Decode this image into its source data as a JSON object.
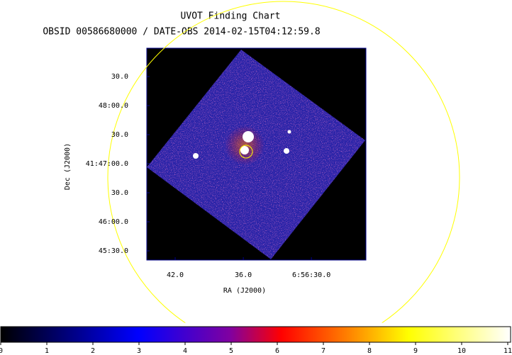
{
  "chart_data": {
    "type": "image",
    "title": "UVOT Finding Chart",
    "subtitle": "OBSID 00586680000 / DATE-OBS 2014-02-15T04:12:59.8",
    "xlabel": "RA (J2000)",
    "ylabel": "Dec (J2000)",
    "xlim": [
      44.5,
      25.2
    ],
    "xticks": [
      {
        "value": 42,
        "label": "42.0"
      },
      {
        "value": 36,
        "label": "36.0"
      },
      {
        "value": 30,
        "label": "6:56:30.0"
      }
    ],
    "ylim": [
      2720.5,
      2939.3
    ],
    "yticks": [
      {
        "value": 2730,
        "label": "45:30.0"
      },
      {
        "value": 2760,
        "label": "46:00.0"
      },
      {
        "value": 2790,
        "label": "30.0"
      },
      {
        "value": 2820,
        "label": "41:47:00.0"
      },
      {
        "value": 2850,
        "label": "30.0"
      },
      {
        "value": 2880,
        "label": "48:00.0"
      },
      {
        "value": 2910,
        "label": "30.0"
      }
    ],
    "colorbar": {
      "lim": [
        0,
        11
      ],
      "ticks": [
        0,
        1,
        2,
        3,
        4,
        5,
        6,
        7,
        8,
        9,
        10,
        11
      ]
    }
  }
}
